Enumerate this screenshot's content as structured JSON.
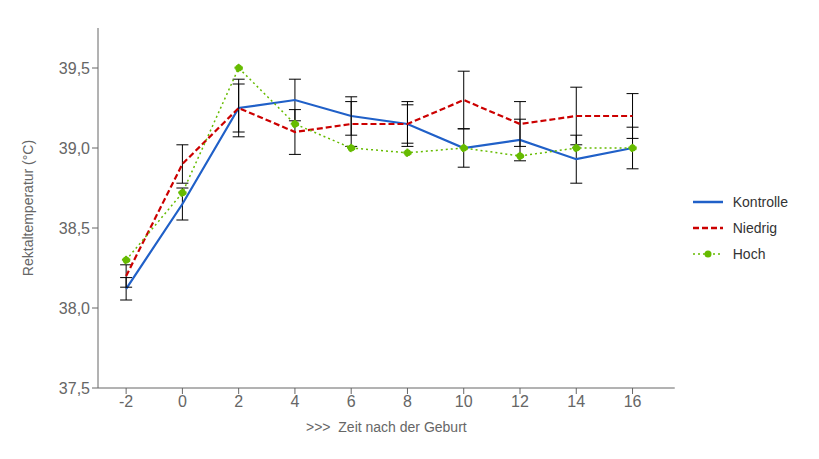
{
  "chart_data": {
    "type": "line",
    "xlabel": ">>>  Zeit nach der Geburt",
    "ylabel": "Rektaltemperatur (°C)",
    "x": [
      -2,
      0,
      2,
      4,
      6,
      8,
      10,
      12,
      14,
      16
    ],
    "series": [
      {
        "name": "Kontrolle",
        "color": "#2060C8",
        "line_style": "solid",
        "values": [
          38.12,
          38.65,
          39.25,
          39.3,
          39.2,
          39.15,
          39.0,
          39.05,
          38.93,
          39.0
        ],
        "errors": [
          0.07,
          0.1,
          0.15,
          0.13,
          0.12,
          0.12,
          0.12,
          0.13,
          0.15,
          0.13
        ]
      },
      {
        "name": "Niedrig",
        "color": "#CC0000",
        "line_style": "dashed",
        "values": [
          38.2,
          38.9,
          39.25,
          39.1,
          39.15,
          39.15,
          39.3,
          39.15,
          39.2,
          39.2
        ],
        "errors": [
          0.07,
          0.12,
          0.18,
          0.14,
          0.14,
          0.14,
          0.18,
          0.14,
          0.18,
          0.14
        ]
      },
      {
        "name": "Hoch",
        "color": "#66BB00",
        "line_style": "dotted",
        "marker": "circle",
        "values": [
          38.3,
          38.72,
          39.5,
          39.15,
          39.0,
          38.97,
          39.0,
          38.95,
          39.0,
          39.0
        ]
      }
    ],
    "xlim": [
      -3.0,
      17.5
    ],
    "xticks": [
      -2,
      0,
      2,
      4,
      6,
      8,
      10,
      12,
      14,
      16
    ],
    "ylim": [
      37.5,
      39.75
    ],
    "yticks": [
      {
        "value": 37.5,
        "label": "37,5"
      },
      {
        "value": 38.0,
        "label": "38,0"
      },
      {
        "value": 38.5,
        "label": "38,5"
      },
      {
        "value": 39.0,
        "label": "39,0"
      },
      {
        "value": 39.5,
        "label": "39,5"
      }
    ],
    "grid": false,
    "legend": "right"
  }
}
